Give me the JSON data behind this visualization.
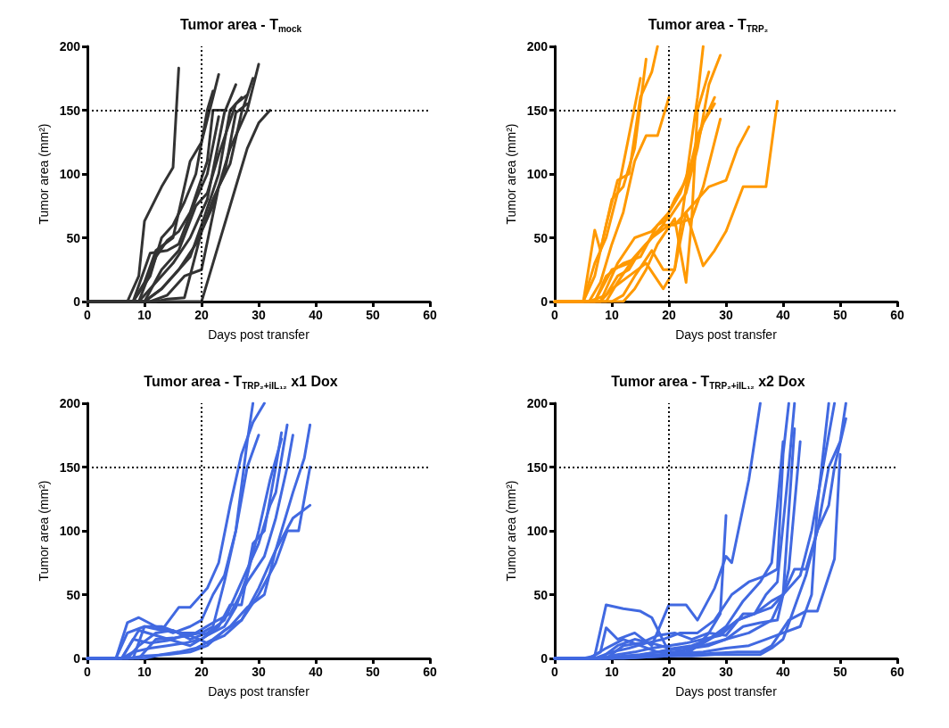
{
  "chart_data": [
    {
      "type": "line",
      "title": "Tumor area - T$_{mock}$",
      "xlabel": "Days post transfer",
      "ylabel": "Tumor area (mm²)",
      "xlim": [
        0,
        60
      ],
      "xticks": [
        0,
        10,
        20,
        30,
        40,
        50,
        60
      ],
      "ylim": [
        0,
        200
      ],
      "yticks": [
        0,
        50,
        100,
        150,
        200
      ],
      "marker": "none",
      "line_style": "solid",
      "ref_lines": [
        {
          "axis": "x",
          "value": 20,
          "color": "#000000",
          "line_style": "dotted"
        },
        {
          "axis": "y",
          "value": 150,
          "color": "#000000",
          "line_style": "dotted"
        }
      ],
      "series": [
        {
          "color": "#333333",
          "x": [
            0,
            7,
            9,
            10,
            13,
            15,
            16
          ],
          "values": [
            0,
            0,
            20,
            63,
            90,
            105,
            183
          ]
        },
        {
          "color": "#333333",
          "x": [
            0,
            8,
            10,
            12,
            15,
            18,
            20,
            22,
            23
          ],
          "values": [
            0,
            0,
            15,
            40,
            50,
            110,
            125,
            160,
            178
          ]
        },
        {
          "color": "#333333",
          "x": [
            0,
            8,
            11,
            13,
            15,
            17,
            19,
            21,
            22
          ],
          "values": [
            0,
            0,
            20,
            50,
            60,
            78,
            100,
            150,
            165
          ]
        },
        {
          "color": "#333333",
          "x": [
            0,
            9,
            12,
            15,
            18,
            21,
            24,
            26
          ],
          "values": [
            0,
            0,
            15,
            30,
            50,
            80,
            148,
            170
          ]
        },
        {
          "color": "#333333",
          "x": [
            0,
            10,
            13,
            16,
            19,
            22,
            25,
            28,
            30
          ],
          "values": [
            0,
            0,
            10,
            25,
            45,
            75,
            120,
            150,
            186
          ]
        },
        {
          "color": "#333333",
          "x": [
            0,
            20,
            22,
            24,
            26,
            28,
            30,
            32
          ],
          "values": [
            0,
            0,
            30,
            60,
            90,
            120,
            140,
            150
          ]
        },
        {
          "color": "#333333",
          "x": [
            0,
            11,
            14,
            17,
            20,
            23,
            25,
            27,
            29
          ],
          "values": [
            0,
            0,
            5,
            20,
            25,
            90,
            108,
            148,
            175
          ]
        },
        {
          "color": "#333333",
          "x": [
            0,
            9,
            12,
            14,
            16,
            18,
            21,
            22,
            24
          ],
          "values": [
            0,
            0,
            35,
            48,
            55,
            70,
            110,
            150,
            150
          ]
        },
        {
          "color": "#333333",
          "x": [
            0,
            10,
            13,
            15,
            18,
            20,
            23,
            25,
            27
          ],
          "values": [
            0,
            0,
            10,
            20,
            35,
            60,
            100,
            150,
            160
          ]
        },
        {
          "color": "#333333",
          "x": [
            0,
            12,
            14,
            17,
            20,
            22,
            24,
            26,
            28
          ],
          "values": [
            0,
            0,
            2,
            3,
            55,
            80,
            100,
            148,
            155
          ]
        },
        {
          "color": "#333333",
          "x": [
            0,
            8,
            11,
            14,
            16,
            19,
            21,
            23
          ],
          "values": [
            0,
            0,
            38,
            40,
            45,
            80,
            100,
            145
          ]
        },
        {
          "color": "#333333",
          "x": [
            0,
            10,
            13,
            16,
            19,
            21,
            23,
            26,
            28
          ],
          "values": [
            0,
            0,
            25,
            40,
            75,
            85,
            115,
            155,
            162
          ]
        }
      ]
    },
    {
      "type": "line",
      "title": "Tumor area - T$_{TRP₂}$",
      "xlabel": "Days post transfer",
      "ylabel": "Tumor area (mm²)",
      "xlim": [
        0,
        60
      ],
      "xticks": [
        0,
        10,
        20,
        30,
        40,
        50,
        60
      ],
      "ylim": [
        0,
        200
      ],
      "yticks": [
        0,
        50,
        100,
        150,
        200
      ],
      "marker": "none",
      "line_style": "solid",
      "ref_lines": [
        {
          "axis": "x",
          "value": 20,
          "color": "#000000",
          "line_style": "dotted"
        },
        {
          "axis": "y",
          "value": 150,
          "color": "#000000",
          "line_style": "dotted"
        }
      ],
      "series": [
        {
          "color": "#ff9900",
          "x": [
            0,
            5,
            7,
            8,
            10,
            12,
            14,
            16
          ],
          "values": [
            0,
            0,
            56,
            40,
            80,
            90,
            120,
            190
          ]
        },
        {
          "color": "#ff9900",
          "x": [
            0,
            5,
            7,
            9,
            11,
            13,
            15,
            17,
            18
          ],
          "values": [
            0,
            0,
            20,
            60,
            95,
            100,
            160,
            180,
            200
          ]
        },
        {
          "color": "#ff9900",
          "x": [
            0,
            6,
            8,
            10,
            12,
            14,
            16,
            18,
            20
          ],
          "values": [
            0,
            0,
            15,
            45,
            70,
            110,
            130,
            130,
            160
          ]
        },
        {
          "color": "#ff9900",
          "x": [
            0,
            6,
            9,
            11,
            13,
            15,
            17,
            19,
            21,
            23,
            25,
            26
          ],
          "values": [
            0,
            0,
            5,
            20,
            25,
            40,
            50,
            60,
            80,
            95,
            160,
            200
          ]
        },
        {
          "color": "#ff9900",
          "x": [
            0,
            7,
            9,
            12,
            15,
            18,
            20,
            23,
            25,
            27,
            29
          ],
          "values": [
            0,
            0,
            20,
            30,
            35,
            60,
            65,
            85,
            120,
            170,
            193
          ]
        },
        {
          "color": "#ff9900",
          "x": [
            0,
            8,
            10,
            13,
            16,
            19,
            21,
            23,
            26,
            28,
            30,
            33,
            37,
            39
          ],
          "values": [
            0,
            0,
            10,
            20,
            30,
            10,
            25,
            70,
            28,
            40,
            55,
            90,
            90,
            157
          ]
        },
        {
          "color": "#ff9900",
          "x": [
            0,
            7,
            10,
            13,
            16,
            19,
            21,
            24,
            27,
            30,
            32,
            34
          ],
          "values": [
            0,
            0,
            25,
            30,
            45,
            60,
            60,
            75,
            90,
            95,
            120,
            137
          ]
        },
        {
          "color": "#ff9900",
          "x": [
            0,
            9,
            11,
            14,
            17,
            20,
            22,
            24,
            25,
            27
          ],
          "values": [
            0,
            0,
            15,
            35,
            50,
            60,
            62,
            65,
            150,
            180
          ]
        },
        {
          "color": "#ff9900",
          "x": [
            0,
            10,
            12,
            14,
            17,
            19,
            21,
            23,
            25,
            28
          ],
          "values": [
            0,
            0,
            5,
            20,
            40,
            25,
            25,
            90,
            130,
            160
          ]
        },
        {
          "color": "#ff9900",
          "x": [
            0,
            5,
            7,
            9,
            11,
            13,
            15
          ],
          "values": [
            0,
            0,
            30,
            50,
            85,
            130,
            175
          ]
        },
        {
          "color": "#ff9900",
          "x": [
            0,
            8,
            11,
            14,
            17,
            20,
            22,
            24,
            26,
            28
          ],
          "values": [
            0,
            0,
            30,
            50,
            55,
            70,
            85,
            110,
            140,
            155
          ]
        },
        {
          "color": "#ff9900",
          "x": [
            0,
            12,
            14,
            16,
            18,
            21,
            23,
            24,
            26,
            29
          ],
          "values": [
            0,
            0,
            10,
            25,
            45,
            65,
            15,
            65,
            90,
            143
          ]
        }
      ]
    },
    {
      "type": "line",
      "title": "Tumor area - T$_{TRP₂+iIL₁₂}$ x1 Dox",
      "xlabel": "Days post transfer",
      "ylabel": "Tumor area (mm²)",
      "xlim": [
        0,
        60
      ],
      "xticks": [
        0,
        10,
        20,
        30,
        40,
        50,
        60
      ],
      "ylim": [
        0,
        200
      ],
      "yticks": [
        0,
        50,
        100,
        150,
        200
      ],
      "marker": "none",
      "line_style": "solid",
      "ref_lines": [
        {
          "axis": "x",
          "value": 20,
          "color": "#000000",
          "line_style": "dotted"
        },
        {
          "axis": "y",
          "value": 150,
          "color": "#000000",
          "line_style": "dotted"
        }
      ],
      "series": [
        {
          "color": "#4169e1",
          "x": [
            0,
            5,
            7,
            9,
            12,
            15,
            18,
            20,
            22,
            24,
            26,
            28,
            29
          ],
          "values": [
            0,
            0,
            28,
            32,
            25,
            20,
            25,
            30,
            50,
            65,
            100,
            170,
            200
          ]
        },
        {
          "color": "#4169e1",
          "x": [
            0,
            5,
            7,
            10,
            13,
            16,
            18,
            21,
            23,
            25,
            27,
            29,
            31
          ],
          "values": [
            0,
            0,
            20,
            25,
            22,
            40,
            40,
            55,
            75,
            120,
            160,
            185,
            200
          ]
        },
        {
          "color": "#4169e1",
          "x": [
            0,
            6,
            8,
            11,
            14,
            17,
            20,
            22,
            24,
            26,
            28,
            30
          ],
          "values": [
            0,
            0,
            15,
            12,
            14,
            18,
            20,
            25,
            60,
            100,
            150,
            175
          ]
        },
        {
          "color": "#4169e1",
          "x": [
            0,
            6,
            8,
            11,
            14,
            17,
            20,
            23,
            25,
            27,
            29,
            31,
            33,
            34
          ],
          "values": [
            0,
            0,
            5,
            8,
            10,
            12,
            15,
            25,
            42,
            42,
            90,
            100,
            150,
            177
          ]
        },
        {
          "color": "#4169e1",
          "x": [
            0,
            7,
            9,
            12,
            15,
            18,
            21,
            24,
            27,
            30,
            32,
            33,
            35
          ],
          "values": [
            0,
            0,
            10,
            20,
            22,
            15,
            20,
            30,
            60,
            90,
            120,
            130,
            183
          ]
        },
        {
          "color": "#4169e1",
          "x": [
            0,
            7,
            10,
            14,
            18,
            21,
            24,
            27,
            30,
            33,
            35,
            37,
            39
          ],
          "values": [
            0,
            0,
            2,
            3,
            5,
            10,
            22,
            30,
            50,
            75,
            100,
            100,
            150
          ]
        },
        {
          "color": "#4169e1",
          "x": [
            0,
            8,
            10,
            13,
            16,
            19,
            22,
            25,
            28,
            31,
            33,
            35,
            36
          ],
          "values": [
            0,
            0,
            25,
            25,
            20,
            20,
            28,
            35,
            60,
            80,
            110,
            150,
            175
          ]
        },
        {
          "color": "#4169e1",
          "x": [
            0,
            9,
            12,
            15,
            18,
            21,
            24,
            27,
            30,
            33,
            36,
            39
          ],
          "values": [
            0,
            0,
            15,
            16,
            18,
            12,
            18,
            30,
            55,
            85,
            110,
            120
          ]
        },
        {
          "color": "#4169e1",
          "x": [
            0,
            6,
            9,
            12,
            15,
            18,
            21,
            24,
            26,
            28,
            30,
            32,
            34
          ],
          "values": [
            0,
            0,
            22,
            18,
            14,
            10,
            18,
            25,
            40,
            65,
            100,
            140,
            172
          ]
        },
        {
          "color": "#4169e1",
          "x": [
            0,
            10,
            13,
            16,
            19,
            22,
            25,
            28,
            31,
            33,
            36,
            38,
            39
          ],
          "values": [
            0,
            0,
            3,
            5,
            8,
            15,
            25,
            40,
            50,
            85,
            130,
            157,
            183
          ]
        }
      ]
    },
    {
      "type": "line",
      "title": "Tumor area - T$_{TRP₂+iIL₁₂}$ x2 Dox",
      "xlabel": "Days post transfer",
      "ylabel": "Tumor area (mm²)",
      "xlim": [
        0,
        60
      ],
      "xticks": [
        0,
        10,
        20,
        30,
        40,
        50,
        60
      ],
      "ylim": [
        0,
        200
      ],
      "yticks": [
        0,
        50,
        100,
        150,
        200
      ],
      "marker": "none",
      "line_style": "solid",
      "ref_lines": [
        {
          "axis": "x",
          "value": 20,
          "color": "#000000",
          "line_style": "dotted"
        },
        {
          "axis": "y",
          "value": 150,
          "color": "#000000",
          "line_style": "dotted"
        }
      ],
      "series": [
        {
          "color": "#4169e1",
          "x": [
            0,
            5,
            7,
            9,
            12,
            15,
            17,
            20,
            23,
            25,
            27,
            29,
            30
          ],
          "values": [
            0,
            0,
            2,
            42,
            39,
            37,
            32,
            5,
            3,
            10,
            20,
            35,
            112
          ]
        },
        {
          "color": "#4169e1",
          "x": [
            0,
            6,
            8,
            9,
            11,
            14,
            17,
            20,
            23,
            25,
            28,
            30,
            31,
            34,
            36
          ],
          "values": [
            0,
            0,
            5,
            24,
            15,
            20,
            10,
            42,
            42,
            30,
            55,
            80,
            75,
            140,
            200
          ]
        },
        {
          "color": "#4169e1",
          "x": [
            0,
            6,
            9,
            12,
            15,
            18,
            21,
            24,
            27,
            30,
            33,
            36,
            38,
            39,
            40
          ],
          "values": [
            0,
            0,
            8,
            15,
            10,
            5,
            8,
            10,
            15,
            25,
            45,
            60,
            75,
            120,
            170
          ]
        },
        {
          "color": "#4169e1",
          "x": [
            0,
            7,
            10,
            13,
            16,
            19,
            22,
            25,
            28,
            31,
            34,
            37,
            39,
            40,
            41
          ],
          "values": [
            0,
            0,
            5,
            8,
            12,
            15,
            20,
            20,
            30,
            50,
            60,
            65,
            70,
            160,
            200
          ]
        },
        {
          "color": "#4169e1",
          "x": [
            0,
            8,
            11,
            14,
            17,
            20,
            23,
            26,
            29,
            32,
            35,
            38,
            40,
            42
          ],
          "values": [
            0,
            0,
            3,
            5,
            8,
            10,
            12,
            15,
            18,
            30,
            35,
            40,
            50,
            180
          ]
        },
        {
          "color": "#4169e1",
          "x": [
            0,
            9,
            12,
            15,
            18,
            21,
            24,
            27,
            30,
            33,
            36,
            39,
            41,
            43
          ],
          "values": [
            0,
            0,
            2,
            3,
            5,
            5,
            8,
            10,
            15,
            25,
            28,
            30,
            70,
            170
          ]
        },
        {
          "color": "#4169e1",
          "x": [
            0,
            9,
            12,
            15,
            18,
            21,
            24,
            27,
            30,
            33,
            35,
            37,
            39,
            41,
            42
          ],
          "values": [
            0,
            0,
            10,
            12,
            18,
            20,
            15,
            20,
            18,
            35,
            35,
            50,
            60,
            150,
            200
          ]
        },
        {
          "color": "#4169e1",
          "x": [
            0,
            10,
            14,
            18,
            22,
            26,
            30,
            34,
            37,
            40,
            43,
            45,
            46,
            48
          ],
          "values": [
            0,
            0,
            2,
            3,
            4,
            5,
            8,
            10,
            15,
            20,
            25,
            50,
            120,
            200
          ]
        },
        {
          "color": "#4169e1",
          "x": [
            0,
            12,
            16,
            20,
            24,
            28,
            32,
            36,
            38,
            41,
            44,
            46,
            49,
            50
          ],
          "values": [
            0,
            0,
            1,
            2,
            3,
            4,
            5,
            5,
            10,
            30,
            37,
            37,
            78,
            160
          ]
        },
        {
          "color": "#4169e1",
          "x": [
            0,
            10,
            14,
            18,
            22,
            26,
            30,
            34,
            38,
            42,
            44,
            46,
            48,
            49,
            51
          ],
          "values": [
            0,
            0,
            2,
            5,
            8,
            10,
            15,
            20,
            30,
            70,
            70,
            100,
            120,
            150,
            188
          ]
        },
        {
          "color": "#4169e1",
          "x": [
            0,
            12,
            16,
            20,
            24,
            28,
            32,
            36,
            38,
            40,
            42,
            44,
            46,
            48,
            50,
            51
          ],
          "values": [
            0,
            0,
            1,
            2,
            2,
            3,
            3,
            3,
            8,
            15,
            40,
            65,
            100,
            150,
            170,
            200
          ]
        },
        {
          "color": "#4169e1",
          "x": [
            0,
            8,
            11,
            14,
            17,
            20,
            23,
            26,
            29,
            32,
            35,
            38,
            40,
            43,
            45,
            47,
            49
          ],
          "values": [
            0,
            0,
            10,
            15,
            12,
            8,
            5,
            12,
            20,
            30,
            35,
            45,
            50,
            65,
            100,
            150,
            200
          ]
        }
      ]
    }
  ]
}
